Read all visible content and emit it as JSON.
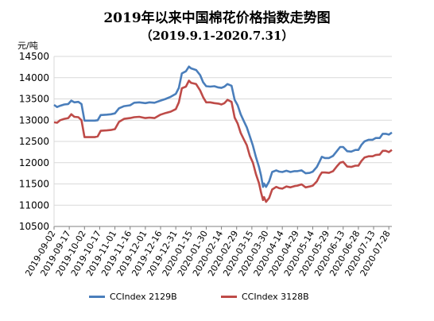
{
  "chart_data": {
    "type": "line",
    "title": "2019年以来中国棉花价格指数走势图",
    "subtitle": "（2019.9.1-2020.7.31）",
    "ylabel": "元/吨",
    "ylim": [
      10500,
      14500
    ],
    "yticks": [
      10500,
      11000,
      11500,
      12000,
      12500,
      13000,
      13500,
      14000,
      14500
    ],
    "xticks": [
      "2019-09-02",
      "2019-09-17",
      "2019-10-02",
      "2019-10-17",
      "2019-11-01",
      "2019-11-16",
      "2019-12-01",
      "2019-12-16",
      "2019-12-31",
      "2020-01-15",
      "2020-01-30",
      "2020-02-14",
      "2020-02-29",
      "2020-03-15",
      "2020-03-30",
      "2020-04-14",
      "2020-04-29",
      "2020-05-14",
      "2020-05-29",
      "2020-06-13",
      "2020-06-28",
      "2020-07-13",
      "2020-07-28"
    ],
    "xlim": [
      "2019-09-02",
      "2020-07-31"
    ],
    "grid": true,
    "legend_position": "bottom",
    "series": [
      {
        "name": "CCIndex 2129B",
        "color": "#4a7ebb",
        "points": [
          [
            "2019-09-02",
            13360
          ],
          [
            "2019-09-05",
            13310
          ],
          [
            "2019-09-08",
            13340
          ],
          [
            "2019-09-12",
            13370
          ],
          [
            "2019-09-16",
            13380
          ],
          [
            "2019-09-19",
            13460
          ],
          [
            "2019-09-22",
            13420
          ],
          [
            "2019-09-26",
            13430
          ],
          [
            "2019-09-29",
            13380
          ],
          [
            "2019-10-02",
            12990
          ],
          [
            "2019-10-08",
            12990
          ],
          [
            "2019-10-12",
            12990
          ],
          [
            "2019-10-15",
            13000
          ],
          [
            "2019-10-18",
            13120
          ],
          [
            "2019-10-24",
            13130
          ],
          [
            "2019-10-28",
            13140
          ],
          [
            "2019-11-01",
            13160
          ],
          [
            "2019-11-05",
            13280
          ],
          [
            "2019-11-10",
            13330
          ],
          [
            "2019-11-16",
            13350
          ],
          [
            "2019-11-20",
            13410
          ],
          [
            "2019-11-25",
            13420
          ],
          [
            "2019-12-01",
            13400
          ],
          [
            "2019-12-05",
            13420
          ],
          [
            "2019-12-10",
            13410
          ],
          [
            "2019-12-16",
            13460
          ],
          [
            "2019-12-21",
            13500
          ],
          [
            "2019-12-26",
            13550
          ],
          [
            "2019-12-31",
            13620
          ],
          [
            "2020-01-03",
            13760
          ],
          [
            "2020-01-06",
            14100
          ],
          [
            "2020-01-10",
            14150
          ],
          [
            "2020-01-13",
            14260
          ],
          [
            "2020-01-15",
            14220
          ],
          [
            "2020-01-20",
            14180
          ],
          [
            "2020-01-24",
            14060
          ],
          [
            "2020-01-27",
            13890
          ],
          [
            "2020-01-30",
            13800
          ],
          [
            "2020-02-03",
            13790
          ],
          [
            "2020-02-07",
            13800
          ],
          [
            "2020-02-11",
            13770
          ],
          [
            "2020-02-14",
            13760
          ],
          [
            "2020-02-17",
            13790
          ],
          [
            "2020-02-20",
            13850
          ],
          [
            "2020-02-24",
            13810
          ],
          [
            "2020-02-27",
            13480
          ],
          [
            "2020-03-01",
            13350
          ],
          [
            "2020-03-04",
            13140
          ],
          [
            "2020-03-07",
            12980
          ],
          [
            "2020-03-10",
            12830
          ],
          [
            "2020-03-13",
            12620
          ],
          [
            "2020-03-16",
            12400
          ],
          [
            "2020-03-19",
            12130
          ],
          [
            "2020-03-22",
            11900
          ],
          [
            "2020-03-24",
            11700
          ],
          [
            "2020-03-26",
            11430
          ],
          [
            "2020-03-27",
            11510
          ],
          [
            "2020-03-29",
            11430
          ],
          [
            "2020-04-01",
            11560
          ],
          [
            "2020-04-04",
            11780
          ],
          [
            "2020-04-08",
            11820
          ],
          [
            "2020-04-11",
            11790
          ],
          [
            "2020-04-14",
            11780
          ],
          [
            "2020-04-18",
            11810
          ],
          [
            "2020-04-22",
            11780
          ],
          [
            "2020-04-26",
            11800
          ],
          [
            "2020-04-29",
            11800
          ],
          [
            "2020-05-03",
            11820
          ],
          [
            "2020-05-07",
            11750
          ],
          [
            "2020-05-11",
            11760
          ],
          [
            "2020-05-14",
            11790
          ],
          [
            "2020-05-18",
            11900
          ],
          [
            "2020-05-21",
            12040
          ],
          [
            "2020-05-23",
            12140
          ],
          [
            "2020-05-26",
            12110
          ],
          [
            "2020-05-30",
            12110
          ],
          [
            "2020-06-03",
            12160
          ],
          [
            "2020-06-07",
            12280
          ],
          [
            "2020-06-10",
            12370
          ],
          [
            "2020-06-13",
            12370
          ],
          [
            "2020-06-17",
            12270
          ],
          [
            "2020-06-21",
            12260
          ],
          [
            "2020-06-25",
            12300
          ],
          [
            "2020-06-28",
            12300
          ],
          [
            "2020-07-01",
            12420
          ],
          [
            "2020-07-04",
            12500
          ],
          [
            "2020-07-08",
            12540
          ],
          [
            "2020-07-12",
            12540
          ],
          [
            "2020-07-15",
            12580
          ],
          [
            "2020-07-19",
            12580
          ],
          [
            "2020-07-22",
            12680
          ],
          [
            "2020-07-25",
            12680
          ],
          [
            "2020-07-28",
            12660
          ],
          [
            "2020-07-31",
            12710
          ]
        ]
      },
      {
        "name": "CCIndex 3128B",
        "color": "#be4b48",
        "points": [
          [
            "2019-09-02",
            12950
          ],
          [
            "2019-09-05",
            12940
          ],
          [
            "2019-09-08",
            13000
          ],
          [
            "2019-09-12",
            13030
          ],
          [
            "2019-09-16",
            13050
          ],
          [
            "2019-09-19",
            13140
          ],
          [
            "2019-09-22",
            13080
          ],
          [
            "2019-09-26",
            13070
          ],
          [
            "2019-09-29",
            13000
          ],
          [
            "2019-10-02",
            12600
          ],
          [
            "2019-10-08",
            12600
          ],
          [
            "2019-10-12",
            12600
          ],
          [
            "2019-10-15",
            12620
          ],
          [
            "2019-10-18",
            12750
          ],
          [
            "2019-10-24",
            12760
          ],
          [
            "2019-10-28",
            12770
          ],
          [
            "2019-11-01",
            12790
          ],
          [
            "2019-11-05",
            12960
          ],
          [
            "2019-11-10",
            13030
          ],
          [
            "2019-11-16",
            13050
          ],
          [
            "2019-11-20",
            13070
          ],
          [
            "2019-11-25",
            13080
          ],
          [
            "2019-12-01",
            13050
          ],
          [
            "2019-12-05",
            13060
          ],
          [
            "2019-12-10",
            13050
          ],
          [
            "2019-12-16",
            13130
          ],
          [
            "2019-12-21",
            13170
          ],
          [
            "2019-12-26",
            13200
          ],
          [
            "2019-12-31",
            13260
          ],
          [
            "2020-01-03",
            13420
          ],
          [
            "2020-01-06",
            13750
          ],
          [
            "2020-01-10",
            13790
          ],
          [
            "2020-01-13",
            13930
          ],
          [
            "2020-01-15",
            13880
          ],
          [
            "2020-01-20",
            13850
          ],
          [
            "2020-01-24",
            13700
          ],
          [
            "2020-01-27",
            13540
          ],
          [
            "2020-01-30",
            13420
          ],
          [
            "2020-02-03",
            13420
          ],
          [
            "2020-02-07",
            13400
          ],
          [
            "2020-02-11",
            13390
          ],
          [
            "2020-02-14",
            13370
          ],
          [
            "2020-02-17",
            13400
          ],
          [
            "2020-02-20",
            13480
          ],
          [
            "2020-02-24",
            13430
          ],
          [
            "2020-02-27",
            13060
          ],
          [
            "2020-03-01",
            12920
          ],
          [
            "2020-03-04",
            12700
          ],
          [
            "2020-03-07",
            12550
          ],
          [
            "2020-03-10",
            12410
          ],
          [
            "2020-03-13",
            12160
          ],
          [
            "2020-03-16",
            12000
          ],
          [
            "2020-03-19",
            11730
          ],
          [
            "2020-03-22",
            11520
          ],
          [
            "2020-03-24",
            11300
          ],
          [
            "2020-03-26",
            11120
          ],
          [
            "2020-03-27",
            11190
          ],
          [
            "2020-03-29",
            11080
          ],
          [
            "2020-04-01",
            11170
          ],
          [
            "2020-04-04",
            11370
          ],
          [
            "2020-04-08",
            11430
          ],
          [
            "2020-04-11",
            11400
          ],
          [
            "2020-04-14",
            11390
          ],
          [
            "2020-04-18",
            11440
          ],
          [
            "2020-04-22",
            11420
          ],
          [
            "2020-04-26",
            11450
          ],
          [
            "2020-04-29",
            11460
          ],
          [
            "2020-05-03",
            11490
          ],
          [
            "2020-05-07",
            11420
          ],
          [
            "2020-05-11",
            11440
          ],
          [
            "2020-05-14",
            11460
          ],
          [
            "2020-05-18",
            11560
          ],
          [
            "2020-05-21",
            11700
          ],
          [
            "2020-05-23",
            11770
          ],
          [
            "2020-05-26",
            11770
          ],
          [
            "2020-05-30",
            11760
          ],
          [
            "2020-06-03",
            11800
          ],
          [
            "2020-06-07",
            11920
          ],
          [
            "2020-06-10",
            12000
          ],
          [
            "2020-06-13",
            12020
          ],
          [
            "2020-06-17",
            11910
          ],
          [
            "2020-06-21",
            11900
          ],
          [
            "2020-06-25",
            11930
          ],
          [
            "2020-06-28",
            11930
          ],
          [
            "2020-07-01",
            12040
          ],
          [
            "2020-07-04",
            12120
          ],
          [
            "2020-07-08",
            12150
          ],
          [
            "2020-07-12",
            12150
          ],
          [
            "2020-07-15",
            12180
          ],
          [
            "2020-07-19",
            12190
          ],
          [
            "2020-07-22",
            12280
          ],
          [
            "2020-07-25",
            12280
          ],
          [
            "2020-07-28",
            12250
          ],
          [
            "2020-07-31",
            12300
          ]
        ]
      }
    ]
  }
}
